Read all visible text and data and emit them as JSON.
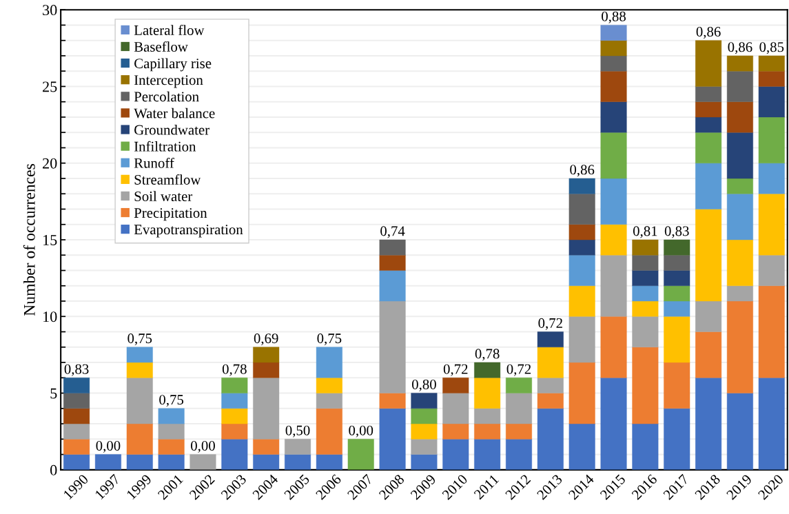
{
  "chart_data": {
    "type": "bar",
    "stacked": true,
    "ylabel": "Number of occurrences",
    "categories": [
      "1990",
      "1997",
      "1999",
      "2001",
      "2002",
      "2003",
      "2004",
      "2005",
      "2006",
      "2007",
      "2008",
      "2009",
      "2010",
      "2011",
      "2012",
      "2013",
      "2014",
      "2015",
      "2016",
      "2017",
      "2018",
      "2019",
      "2020"
    ],
    "series": [
      {
        "name": "Evapotranspiration",
        "color": "#4472c4",
        "values": [
          1,
          1,
          1,
          1,
          0,
          2,
          1,
          1,
          1,
          0,
          4,
          1,
          2,
          2,
          2,
          4,
          3,
          6,
          3,
          4,
          6,
          5,
          6
        ]
      },
      {
        "name": "Precipitation",
        "color": "#ed7d31",
        "values": [
          1,
          0,
          2,
          1,
          0,
          1,
          1,
          0,
          3,
          0,
          1,
          0,
          1,
          1,
          1,
          1,
          4,
          4,
          5,
          3,
          3,
          6,
          6
        ]
      },
      {
        "name": "Soil water",
        "color": "#a5a5a5",
        "values": [
          1,
          0,
          3,
          1,
          1,
          0,
          4,
          1,
          1,
          0,
          6,
          1,
          2,
          1,
          2,
          1,
          3,
          4,
          2,
          0,
          2,
          1,
          2
        ]
      },
      {
        "name": "Streamflow",
        "color": "#ffc000",
        "values": [
          0,
          0,
          1,
          0,
          0,
          1,
          0,
          0,
          1,
          0,
          0,
          1,
          0,
          2,
          0,
          2,
          2,
          2,
          1,
          3,
          6,
          3,
          4
        ]
      },
      {
        "name": "Runoff",
        "color": "#5b9bd5",
        "values": [
          0,
          0,
          1,
          1,
          0,
          1,
          0,
          0,
          2,
          0,
          2,
          0,
          0,
          0,
          0,
          0,
          2,
          3,
          1,
          1,
          3,
          3,
          2
        ]
      },
      {
        "name": "Infiltration",
        "color": "#70ad47",
        "values": [
          0,
          0,
          0,
          0,
          0,
          1,
          0,
          0,
          0,
          2,
          0,
          1,
          0,
          0,
          1,
          0,
          0,
          3,
          0,
          1,
          2,
          1,
          3
        ]
      },
      {
        "name": "Groundwater",
        "color": "#264478",
        "values": [
          0,
          0,
          0,
          0,
          0,
          0,
          0,
          0,
          0,
          0,
          0,
          1,
          0,
          0,
          0,
          1,
          1,
          2,
          1,
          1,
          1,
          3,
          2
        ]
      },
      {
        "name": "Water balance",
        "color": "#9e480e",
        "values": [
          1,
          0,
          0,
          0,
          0,
          0,
          1,
          0,
          0,
          0,
          1,
          0,
          1,
          0,
          0,
          0,
          1,
          2,
          0,
          0,
          1,
          2,
          1
        ]
      },
      {
        "name": "Percolation",
        "color": "#636363",
        "values": [
          1,
          0,
          0,
          0,
          0,
          0,
          0,
          0,
          0,
          0,
          1,
          0,
          0,
          0,
          0,
          0,
          2,
          1,
          1,
          1,
          1,
          2,
          0
        ]
      },
      {
        "name": "Interception",
        "color": "#997300",
        "values": [
          0,
          0,
          0,
          0,
          0,
          0,
          1,
          0,
          0,
          0,
          0,
          0,
          0,
          0,
          0,
          0,
          0,
          1,
          1,
          0,
          3,
          1,
          1
        ]
      },
      {
        "name": "Capillary rise",
        "color": "#255e91",
        "values": [
          1,
          0,
          0,
          0,
          0,
          0,
          0,
          0,
          0,
          0,
          0,
          0,
          0,
          0,
          0,
          0,
          1,
          0,
          0,
          0,
          0,
          0,
          0
        ]
      },
      {
        "name": "Baseflow",
        "color": "#43682b",
        "values": [
          0,
          0,
          0,
          0,
          0,
          0,
          0,
          0,
          0,
          0,
          0,
          0,
          0,
          1,
          0,
          0,
          0,
          0,
          0,
          1,
          0,
          0,
          0
        ]
      },
      {
        "name": "Lateral flow",
        "color": "#698ed0",
        "values": [
          0,
          0,
          0,
          0,
          0,
          0,
          0,
          0,
          0,
          0,
          0,
          0,
          0,
          0,
          0,
          0,
          0,
          1,
          0,
          0,
          0,
          0,
          0
        ]
      }
    ],
    "annotations": [
      {
        "text": "0,83",
        "x": "1990",
        "y": 6
      },
      {
        "text": "0,00",
        "x": "1997",
        "y": 1
      },
      {
        "text": "0,75",
        "x": "1999",
        "y": 8
      },
      {
        "text": "0,75",
        "x": "2001",
        "y": 4
      },
      {
        "text": "0,00",
        "x": "2002",
        "y": 1
      },
      {
        "text": "0,78",
        "x": "2003",
        "y": 6
      },
      {
        "text": "0,69",
        "x": "2004",
        "y": 8
      },
      {
        "text": "0,50",
        "x": "2005",
        "y": 2
      },
      {
        "text": "0,75",
        "x": "2006",
        "y": 8
      },
      {
        "text": "0,00",
        "x": "2007",
        "y": 2
      },
      {
        "text": "0,74",
        "x": "2008",
        "y": 15
      },
      {
        "text": "0,80",
        "x": "2009",
        "y": 5
      },
      {
        "text": "0,72",
        "x": "2010",
        "y": 6
      },
      {
        "text": "0,78",
        "x": "2011",
        "y": 7
      },
      {
        "text": "0,72",
        "x": "2012",
        "y": 6
      },
      {
        "text": "0,72",
        "x": "2013",
        "y": 9
      },
      {
        "text": "0,86",
        "x": "2014",
        "y": 19
      },
      {
        "text": "0,88",
        "x": "2015",
        "y": 29
      },
      {
        "text": "0,81",
        "x": "2016",
        "y": 15
      },
      {
        "text": "0,83",
        "x": "2017",
        "y": 15
      },
      {
        "text": "0,86",
        "x": "2018",
        "y": 28
      },
      {
        "text": "0,86",
        "x": "2019",
        "y": 27
      },
      {
        "text": "0,85",
        "x": "2020",
        "y": 27
      }
    ],
    "ylim": [
      0,
      30
    ],
    "yticks": [
      0,
      {
        "value": 1,
        "label": null
      },
      {
        "value": 2,
        "label": null
      },
      {
        "value": 3,
        "label": null
      },
      {
        "value": 4,
        "label": null
      },
      5,
      {
        "value": 6,
        "label": null
      },
      {
        "value": 7,
        "label": null
      },
      {
        "value": 8,
        "label": null
      },
      {
        "value": 9,
        "label": null
      },
      10,
      {
        "value": 11,
        "label": null
      },
      {
        "value": 12,
        "label": null
      },
      {
        "value": 13,
        "label": null
      },
      {
        "value": 14,
        "label": null
      },
      15,
      {
        "value": 16,
        "label": null
      },
      {
        "value": 17,
        "label": null
      },
      {
        "value": 18,
        "label": null
      },
      {
        "value": 19,
        "label": null
      },
      20,
      {
        "value": 21,
        "label": null
      },
      {
        "value": 22,
        "label": null
      },
      {
        "value": 23,
        "label": null
      },
      {
        "value": 24,
        "label": null
      },
      25,
      {
        "value": 26,
        "label": null
      },
      {
        "value": 27,
        "label": null
      },
      {
        "value": 28,
        "label": null
      },
      {
        "value": 29,
        "label": null
      },
      30
    ],
    "grid": "y",
    "legend": "top left"
  }
}
